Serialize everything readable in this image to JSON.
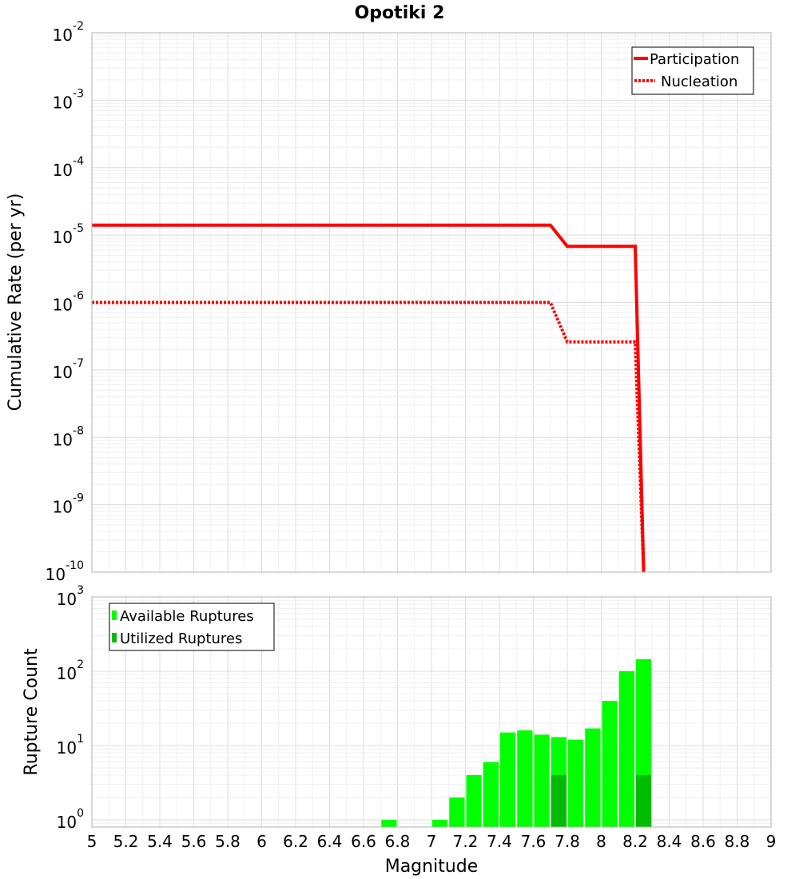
{
  "chart_data": [
    {
      "type": "line",
      "title": "Opotiki 2",
      "ylabel": "Cumulative Rate (per yr)",
      "xlim": [
        5,
        9
      ],
      "ylim": [
        1e-10,
        0.01
      ],
      "yscale": "log",
      "ytick_exponents": [
        "-2",
        "-3",
        "-4",
        "-5",
        "-6",
        "-7",
        "-8",
        "-9",
        "-10"
      ],
      "ytick_base": "10",
      "grid": true,
      "legend_position": "top-right",
      "series": [
        {
          "name": "Participation",
          "style": "solid",
          "color": "#ff0000",
          "x": [
            5.0,
            7.7,
            7.8,
            8.2,
            8.25
          ],
          "y": [
            1.4e-05,
            1.4e-05,
            6.8e-06,
            6.8e-06,
            1e-10
          ]
        },
        {
          "name": "Nucleation",
          "style": "dotted",
          "color": "#ff0000",
          "x": [
            5.0,
            7.7,
            7.8,
            8.2,
            8.25
          ],
          "y": [
            1e-06,
            1e-06,
            2.6e-07,
            2.6e-07,
            1e-10
          ]
        }
      ]
    },
    {
      "type": "bar",
      "xlabel": "Magnitude",
      "ylabel": "Rupture Count",
      "xlim": [
        5,
        9
      ],
      "ylim": [
        0.8,
        1000
      ],
      "yscale": "log",
      "ytick_exponents": [
        "3",
        "2",
        "1",
        "0"
      ],
      "ytick_base": "10",
      "xticks": [
        "5",
        "5.2",
        "5.4",
        "5.6",
        "5.8",
        "6",
        "6.2",
        "6.4",
        "6.6",
        "6.8",
        "7",
        "7.2",
        "7.4",
        "7.6",
        "7.8",
        "8",
        "8.2",
        "8.4",
        "8.6",
        "8.8",
        "9"
      ],
      "grid": true,
      "legend_position": "top-left",
      "bar_width": 0.1,
      "series": [
        {
          "name": "Available Ruptures",
          "color": "#00ff00",
          "x": [
            6.75,
            7.05,
            7.15,
            7.25,
            7.35,
            7.45,
            7.55,
            7.65,
            7.75,
            7.85,
            7.95,
            8.05,
            8.15,
            8.25
          ],
          "values": [
            1,
            1,
            2,
            4,
            6,
            15,
            16,
            14,
            13,
            12,
            17,
            40,
            100,
            145
          ]
        },
        {
          "name": "Utilized Ruptures",
          "color": "#00bb00",
          "x": [
            7.75,
            8.25
          ],
          "values": [
            4,
            4
          ]
        }
      ]
    }
  ]
}
